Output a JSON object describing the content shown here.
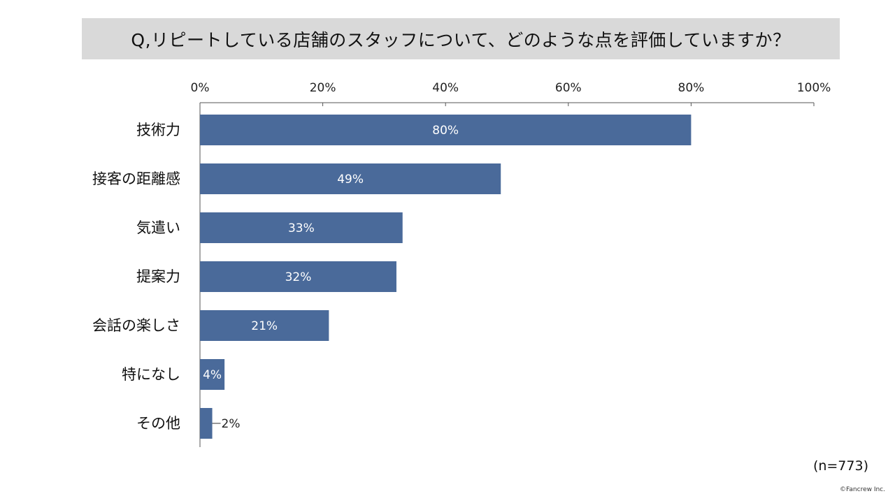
{
  "title": "Q,リピートしている店舗のスタッフについて、どのような点を評価していますか？",
  "sample_note": "(n=773)",
  "copyright": "©Fancrew Inc.",
  "colors": {
    "bar": "#4a6a9a",
    "title_bg": "#d9d9d9",
    "axis": "#555555"
  },
  "chart_data": {
    "type": "bar",
    "orientation": "horizontal",
    "title": "Q,リピートしている店舗のスタッフについて、どのような点を評価していますか？",
    "categories": [
      "技術力",
      "接客の距離感",
      "気遣い",
      "提案力",
      "会話の楽しさ",
      "特になし",
      "その他"
    ],
    "values": [
      80,
      49,
      33,
      32,
      21,
      4,
      2
    ],
    "value_labels": [
      "80%",
      "49%",
      "33%",
      "32%",
      "21%",
      "4%",
      "2%"
    ],
    "xticks": [
      "0%",
      "20%",
      "40%",
      "60%",
      "80%",
      "100%"
    ],
    "xlim": [
      0,
      100
    ],
    "axis_position": "top",
    "grid": false,
    "legend": "none"
  }
}
